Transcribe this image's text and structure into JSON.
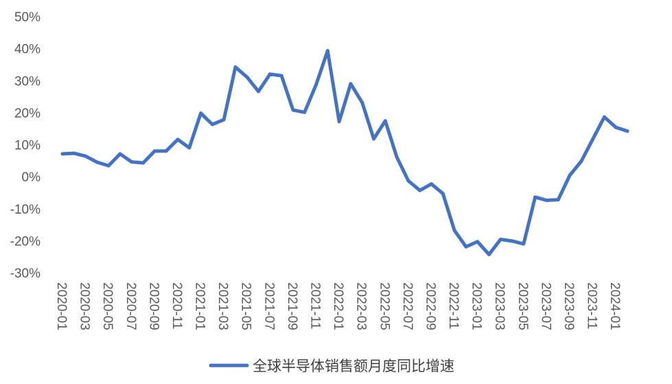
{
  "chart_data": {
    "type": "line",
    "grid": false,
    "legend_position": "bottom",
    "ylim": [
      -0.3,
      0.5
    ],
    "y_ticks": [
      "50%",
      "40%",
      "30%",
      "20%",
      "10%",
      "0%",
      "-10%",
      "-20%",
      "-30%"
    ],
    "y_tick_values": [
      0.5,
      0.4,
      0.3,
      0.2,
      0.1,
      0.0,
      -0.1,
      -0.2,
      -0.3
    ],
    "x_tick_labels": [
      "2020-01",
      "2020-03",
      "2020-05",
      "2020-07",
      "2020-09",
      "2020-11",
      "2021-01",
      "2021-03",
      "2021-05",
      "2021-07",
      "2021-09",
      "2021-11",
      "2022-01",
      "2022-03",
      "2022-05",
      "2022-07",
      "2022-09",
      "2022-11",
      "2023-01",
      "2023-03",
      "2023-05",
      "2023-07",
      "2023-09",
      "2023-11",
      "2024-01"
    ],
    "categories": [
      "2020-01",
      "2020-02",
      "2020-03",
      "2020-04",
      "2020-05",
      "2020-06",
      "2020-07",
      "2020-08",
      "2020-09",
      "2020-10",
      "2020-11",
      "2020-12",
      "2021-01",
      "2021-02",
      "2021-03",
      "2021-04",
      "2021-05",
      "2021-06",
      "2021-07",
      "2021-08",
      "2021-09",
      "2021-10",
      "2021-11",
      "2021-12",
      "2022-01",
      "2022-02",
      "2022-03",
      "2022-04",
      "2022-05",
      "2022-06",
      "2022-07",
      "2022-08",
      "2022-09",
      "2022-10",
      "2022-11",
      "2022-12",
      "2023-01",
      "2023-02",
      "2023-03",
      "2023-04",
      "2023-05",
      "2023-06",
      "2023-07",
      "2023-08",
      "2023-09",
      "2023-10",
      "2023-11",
      "2023-12",
      "2024-01",
      "2024-02"
    ],
    "series": [
      {
        "name": "全球半导体销售额月度同比增速",
        "color": "#4472C4",
        "values": [
          0.071,
          0.073,
          0.064,
          0.045,
          0.034,
          0.071,
          0.046,
          0.043,
          0.08,
          0.08,
          0.116,
          0.09,
          0.198,
          0.163,
          0.178,
          0.342,
          0.311,
          0.266,
          0.32,
          0.315,
          0.208,
          0.201,
          0.287,
          0.393,
          0.172,
          0.29,
          0.231,
          0.118,
          0.174,
          0.061,
          -0.013,
          -0.043,
          -0.023,
          -0.053,
          -0.168,
          -0.219,
          -0.203,
          -0.243,
          -0.196,
          -0.201,
          -0.21,
          -0.064,
          -0.074,
          -0.072,
          0.004,
          0.048,
          0.117,
          0.186,
          0.154,
          0.142
        ]
      }
    ]
  },
  "legend": {
    "label": "全球半导体销售额月度同比增速"
  }
}
